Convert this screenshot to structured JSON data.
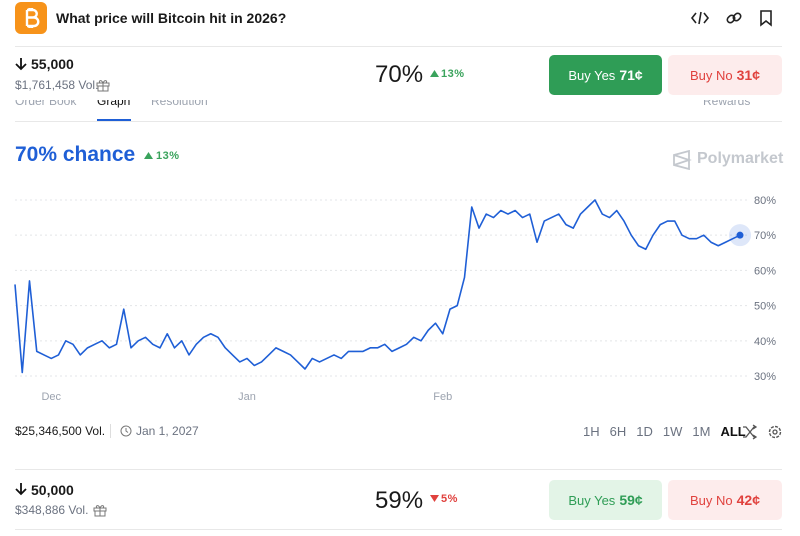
{
  "header": {
    "title": "What price will Bitcoin hit in 2026?"
  },
  "markets": [
    {
      "label": "55,000",
      "volume": "$1,761,458 Vol.",
      "chance": "70%",
      "change": "13%",
      "buy_yes": "Buy Yes",
      "yes_price": "71¢",
      "buy_no": "Buy No",
      "no_price": "31¢"
    },
    {
      "label": "50,000",
      "volume": "$348,886 Vol.",
      "chance": "59%",
      "change": "5%",
      "buy_yes": "Buy Yes",
      "yes_price": "59¢",
      "buy_no": "Buy No",
      "no_price": "42¢"
    }
  ],
  "tabs": [
    "Order Book",
    "Graph",
    "Resolution",
    "Rewards"
  ],
  "chart_header": {
    "chance": "70% chance",
    "change": "13%",
    "brand": "Polymarket"
  },
  "chart_footer": {
    "volume": "$25,346,500 Vol.",
    "end_date": "Jan 1, 2027",
    "ranges": [
      "1H",
      "6H",
      "1D",
      "1W",
      "1M",
      "ALL"
    ],
    "active_range": "ALL"
  },
  "chart_data": {
    "type": "line",
    "categories": [
      null,
      null,
      null,
      null,
      null,
      "Dec",
      null,
      null,
      null,
      null,
      null,
      null,
      null,
      null,
      null,
      null,
      null,
      null,
      null,
      null,
      null,
      null,
      null,
      null,
      null,
      null,
      null,
      null,
      null,
      null,
      null,
      null,
      "Jan",
      null,
      null,
      null,
      null,
      null,
      null,
      null,
      null,
      null,
      null,
      null,
      null,
      null,
      null,
      null,
      null,
      null,
      null,
      null,
      null,
      null,
      null,
      null,
      null,
      null,
      null,
      "Feb",
      null,
      null,
      null,
      null,
      null,
      null,
      null,
      null,
      null,
      null,
      null,
      null,
      null,
      null,
      null,
      null,
      null,
      null,
      null,
      null,
      null,
      null,
      null,
      null,
      null,
      null,
      null,
      null,
      null,
      null,
      null,
      null,
      null,
      null,
      null,
      null,
      null,
      null,
      null,
      null,
      null
    ],
    "series": [
      {
        "name": "55,000",
        "color": "#1f5fd6",
        "values": [
          56,
          31,
          57,
          37,
          36,
          35,
          36,
          40,
          39,
          36,
          38,
          39,
          40,
          38,
          39,
          49,
          38,
          40,
          41,
          39,
          38,
          42,
          38,
          40,
          36,
          39,
          41,
          42,
          41,
          38,
          36,
          34,
          35,
          33,
          34,
          36,
          38,
          37,
          36,
          34,
          32,
          35,
          34,
          35,
          36,
          35,
          37,
          37,
          37,
          38,
          38,
          39,
          37,
          38,
          39,
          41,
          40,
          43,
          45,
          42,
          49,
          50,
          58,
          78,
          72,
          76,
          75,
          77,
          76,
          77,
          75,
          76,
          68,
          74,
          75,
          76,
          73,
          72,
          76,
          78,
          80,
          76,
          75,
          77,
          74,
          70,
          67,
          66,
          70,
          73,
          74,
          74,
          70,
          69,
          69,
          70,
          68,
          67,
          68,
          69,
          70
        ]
      }
    ],
    "ylim": [
      27,
      83
    ],
    "yticks": [
      {
        "value": 30,
        "label": "30%"
      },
      {
        "value": 40,
        "label": "40%"
      },
      {
        "value": 50,
        "label": "50%"
      },
      {
        "value": 60,
        "label": "60%"
      },
      {
        "value": 70,
        "label": "70%"
      },
      {
        "value": 80,
        "label": "80%"
      }
    ],
    "grid": true
  }
}
